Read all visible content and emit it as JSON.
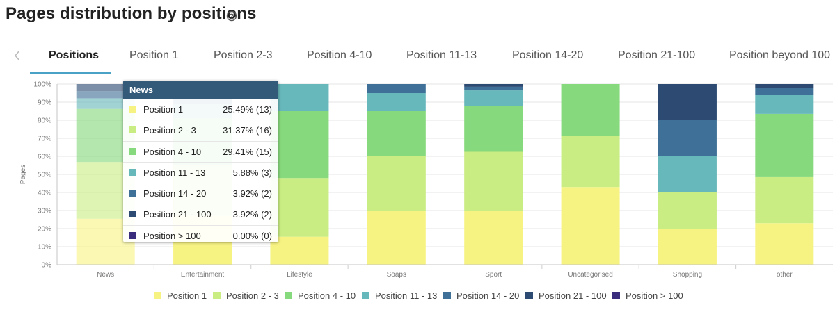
{
  "header": {
    "title": "Pages distribution by positions",
    "help_icon": "question-circle-icon"
  },
  "tabs": {
    "prev_icon": "chevron-left-icon",
    "items": [
      "Positions",
      "Position 1",
      "Position 2-3",
      "Position 4-10",
      "Position 11-13",
      "Position 14-20",
      "Position 21-100",
      "Position beyond 100"
    ],
    "active": "Positions"
  },
  "colors": {
    "Position 1": "#f7f383",
    "Position 2 - 3": "#c9ed82",
    "Position 4 - 10": "#86d97c",
    "Position 11 - 13": "#67b8bb",
    "Position 14 - 20": "#3f7198",
    "Position 21 - 100": "#2c4a72",
    "Position > 100": "#3a2d7d",
    "accent": "#4aa3c6"
  },
  "chart_data": {
    "type": "bar",
    "stacked": true,
    "ylabel": "Pages",
    "yticks": [
      "0%",
      "10%",
      "20%",
      "30%",
      "40%",
      "50%",
      "60%",
      "70%",
      "80%",
      "90%",
      "100%"
    ],
    "ylim": [
      0,
      100
    ],
    "categories": [
      "News",
      "Entertainment",
      "Lifestyle",
      "Soaps",
      "Sport",
      "Uncategorised",
      "Shopping",
      "other"
    ],
    "series": [
      {
        "name": "Position 1",
        "values": [
          25.49,
          27,
          15.5,
          30,
          30,
          43,
          20,
          23
        ]
      },
      {
        "name": "Position 2 - 3",
        "values": [
          31.37,
          28,
          32.5,
          30,
          32.5,
          28.5,
          20,
          25.5
        ]
      },
      {
        "name": "Position 4 - 10",
        "values": [
          29.41,
          26,
          37,
          25,
          25.5,
          28.5,
          0,
          35
        ]
      },
      {
        "name": "Position 11 - 13",
        "values": [
          5.88,
          8,
          15,
          10,
          8.5,
          0,
          20,
          10.5
        ]
      },
      {
        "name": "Position 14 - 20",
        "values": [
          3.92,
          6,
          0,
          5,
          2,
          0,
          20,
          4
        ]
      },
      {
        "name": "Position 21 - 100",
        "values": [
          3.92,
          5,
          0,
          0,
          1.5,
          0,
          20,
          2
        ]
      },
      {
        "name": "Position > 100",
        "values": [
          0,
          0,
          0,
          0,
          0,
          0,
          0,
          0
        ]
      }
    ],
    "grid": true,
    "legend": "bottom-center"
  },
  "tooltip": {
    "title": "News",
    "rows": [
      {
        "label": "Position 1",
        "value": "25.49% (13)"
      },
      {
        "label": "Position 2 - 3",
        "value": "31.37% (16)"
      },
      {
        "label": "Position 4 - 10",
        "value": "29.41% (15)"
      },
      {
        "label": "Position 11 - 13",
        "value": "5.88% (3)"
      },
      {
        "label": "Position 14 - 20",
        "value": "3.92% (2)"
      },
      {
        "label": "Position 21 - 100",
        "value": "3.92% (2)"
      },
      {
        "label": "Position > 100",
        "value": "0.00% (0)"
      }
    ]
  }
}
